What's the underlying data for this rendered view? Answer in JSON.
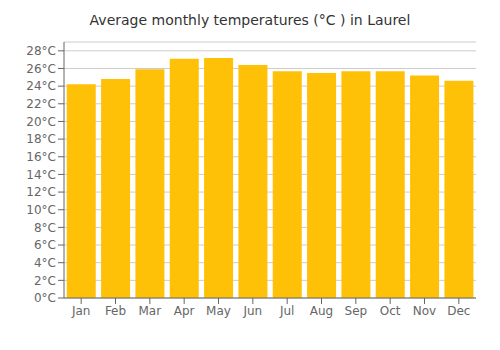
{
  "chart_data": {
    "type": "bar",
    "title": "Average monthly temperatures (°C ) in Laurel",
    "categories": [
      "Jan",
      "Feb",
      "Mar",
      "Apr",
      "May",
      "Jun",
      "Jul",
      "Aug",
      "Sep",
      "Oct",
      "Nov",
      "Dec"
    ],
    "values": [
      24.2,
      24.8,
      25.9,
      27.1,
      27.2,
      26.4,
      25.7,
      25.5,
      25.7,
      25.7,
      25.2,
      24.6
    ],
    "color": "#FFC107",
    "ylim": [
      0,
      29
    ],
    "yticks": [
      {
        "value": 0,
        "label": "0°C"
      },
      {
        "value": 2,
        "label": "2°C"
      },
      {
        "value": 4,
        "label": "4°C"
      },
      {
        "value": 6,
        "label": "6°C"
      },
      {
        "value": 8,
        "label": "8°C"
      },
      {
        "value": 10,
        "label": "10°C"
      },
      {
        "value": 12,
        "label": "12°C"
      },
      {
        "value": 14,
        "label": "14°C"
      },
      {
        "value": 16,
        "label": "16°C"
      },
      {
        "value": 18,
        "label": "18°C"
      },
      {
        "value": 20,
        "label": "20°C"
      },
      {
        "value": 22,
        "label": "22°C"
      },
      {
        "value": 24,
        "label": "24°C"
      },
      {
        "value": 26,
        "label": "26°C"
      },
      {
        "value": 28,
        "label": "28°C"
      }
    ],
    "grid": true
  }
}
